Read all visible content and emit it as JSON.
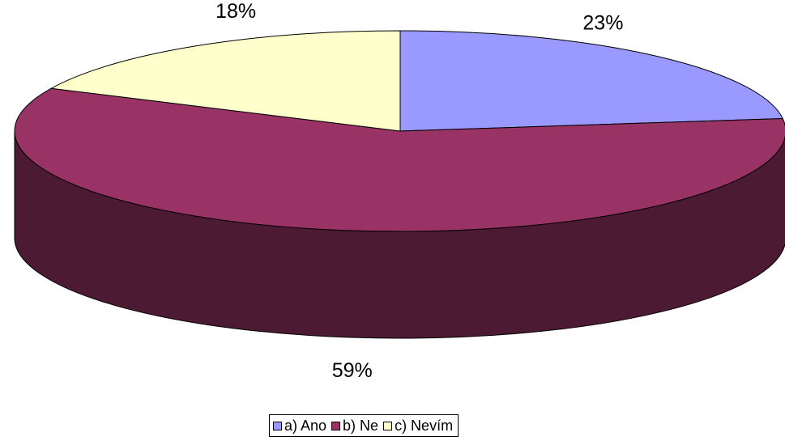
{
  "chart_data": {
    "type": "pie",
    "title": "",
    "three_d": true,
    "legend_position": "bottom",
    "labels": [
      "a) Ano",
      "b) Ne",
      "c) Nevím"
    ],
    "values": [
      23,
      59,
      18
    ],
    "value_labels": [
      "23%",
      "59%",
      "18%"
    ],
    "colors": [
      "#9999FF",
      "#993366",
      "#FFFFCC"
    ],
    "side_colors": [
      "#4F4F85",
      "#4D1A33",
      "#858569"
    ]
  }
}
